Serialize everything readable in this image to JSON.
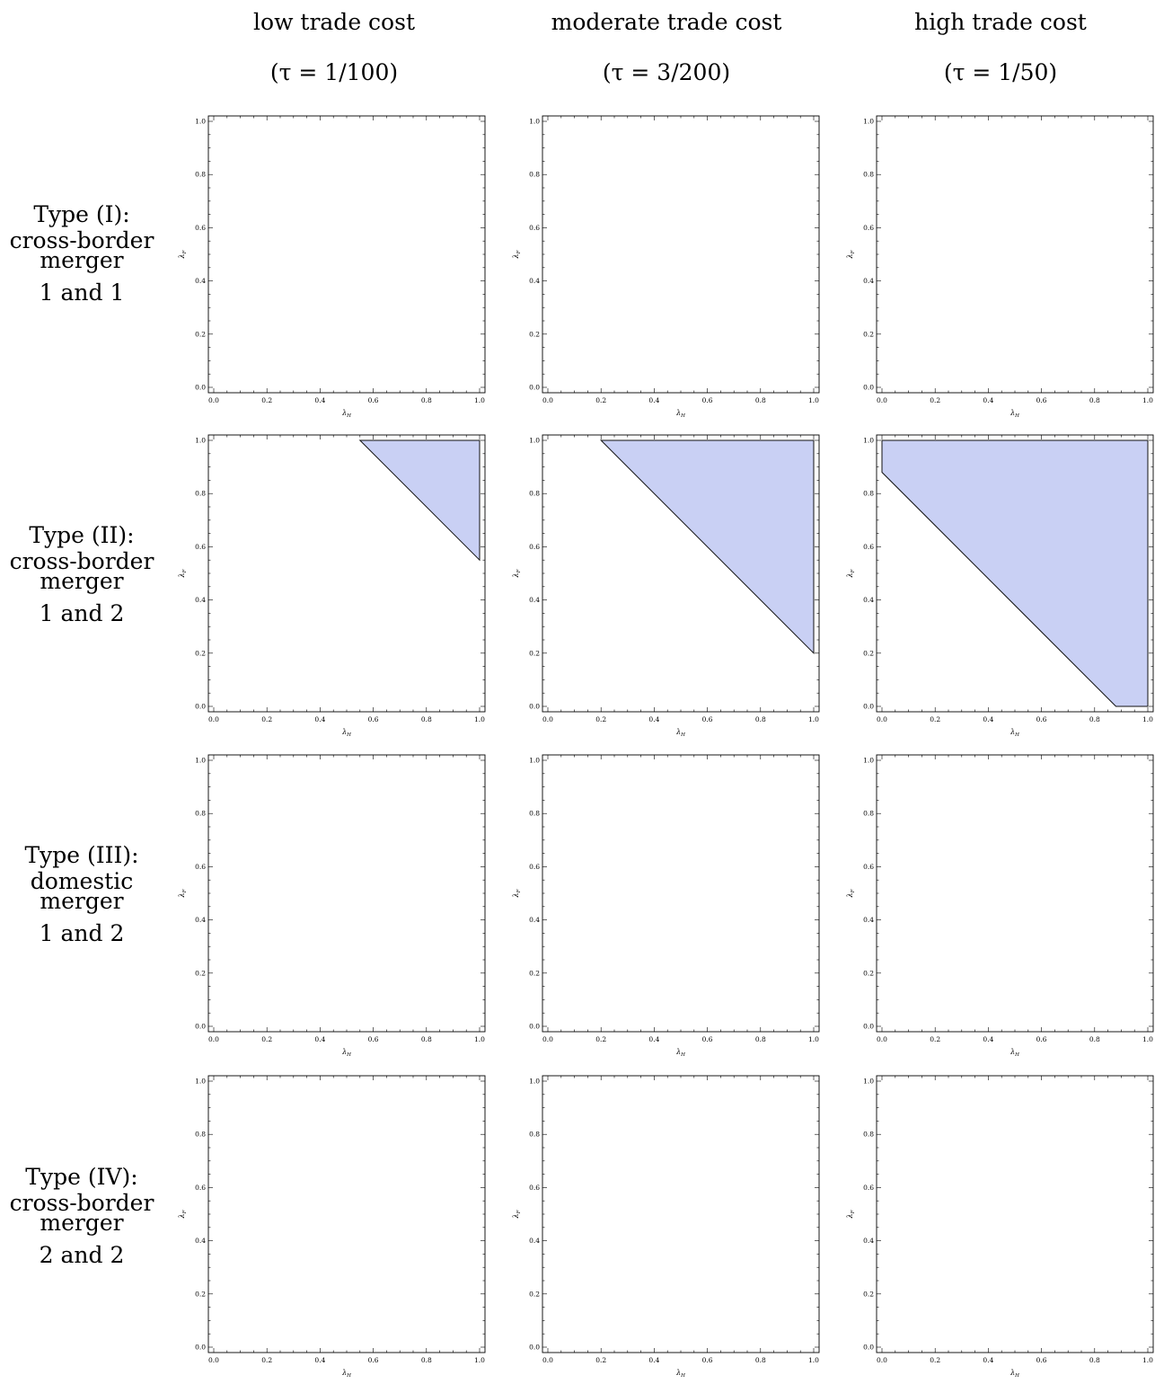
{
  "columns": [
    {
      "title": "low trade cost",
      "param": "(τ = 1/100)"
    },
    {
      "title": "moderate trade cost",
      "param": "(τ = 3/200)"
    },
    {
      "title": "high trade cost",
      "param": "(τ = 1/50)"
    }
  ],
  "rows": [
    {
      "lines": [
        "Type (I):",
        "cross-border",
        "merger",
        "1 and 1"
      ]
    },
    {
      "lines": [
        "Type (II):",
        "cross-border",
        "merger",
        "1 and 2"
      ]
    },
    {
      "lines": [
        "Type (III):",
        "domestic",
        "merger",
        "1 and 2"
      ]
    },
    {
      "lines": [
        "Type (IV):",
        "cross-border",
        "merger",
        "2 and 2"
      ]
    }
  ],
  "axes": {
    "xlabel": "λ",
    "xlabel_sub": "H",
    "ylabel": "λ",
    "ylabel_sub": "F",
    "xlim": [
      0,
      1
    ],
    "ylim": [
      0,
      1
    ],
    "ticks": [
      "0.0",
      "0.2",
      "0.4",
      "0.6",
      "0.8",
      "1.0"
    ]
  },
  "colors": {
    "region_fill": "#c9d0f4",
    "region_stroke": "#111111"
  },
  "chart_data": [
    {
      "type": "area",
      "row": 0,
      "col": 0,
      "regions": []
    },
    {
      "type": "area",
      "row": 0,
      "col": 1,
      "regions": []
    },
    {
      "type": "area",
      "row": 0,
      "col": 2,
      "regions": []
    },
    {
      "type": "area",
      "row": 1,
      "col": 0,
      "regions": [
        [
          [
            0.55,
            1.0
          ],
          [
            1.0,
            1.0
          ],
          [
            1.0,
            0.55
          ]
        ]
      ]
    },
    {
      "type": "area",
      "row": 1,
      "col": 1,
      "regions": [
        [
          [
            0.2,
            1.0
          ],
          [
            1.0,
            1.0
          ],
          [
            1.0,
            0.2
          ]
        ]
      ]
    },
    {
      "type": "area",
      "row": 1,
      "col": 2,
      "regions": [
        [
          [
            0.0,
            0.88
          ],
          [
            0.0,
            1.0
          ],
          [
            1.0,
            1.0
          ],
          [
            1.0,
            0.0
          ],
          [
            0.88,
            0.0
          ]
        ]
      ]
    },
    {
      "type": "area",
      "row": 2,
      "col": 0,
      "regions": []
    },
    {
      "type": "area",
      "row": 2,
      "col": 1,
      "regions": []
    },
    {
      "type": "area",
      "row": 2,
      "col": 2,
      "regions": []
    },
    {
      "type": "area",
      "row": 3,
      "col": 0,
      "regions": []
    },
    {
      "type": "area",
      "row": 3,
      "col": 1,
      "regions": []
    },
    {
      "type": "area",
      "row": 3,
      "col": 2,
      "regions": []
    }
  ]
}
